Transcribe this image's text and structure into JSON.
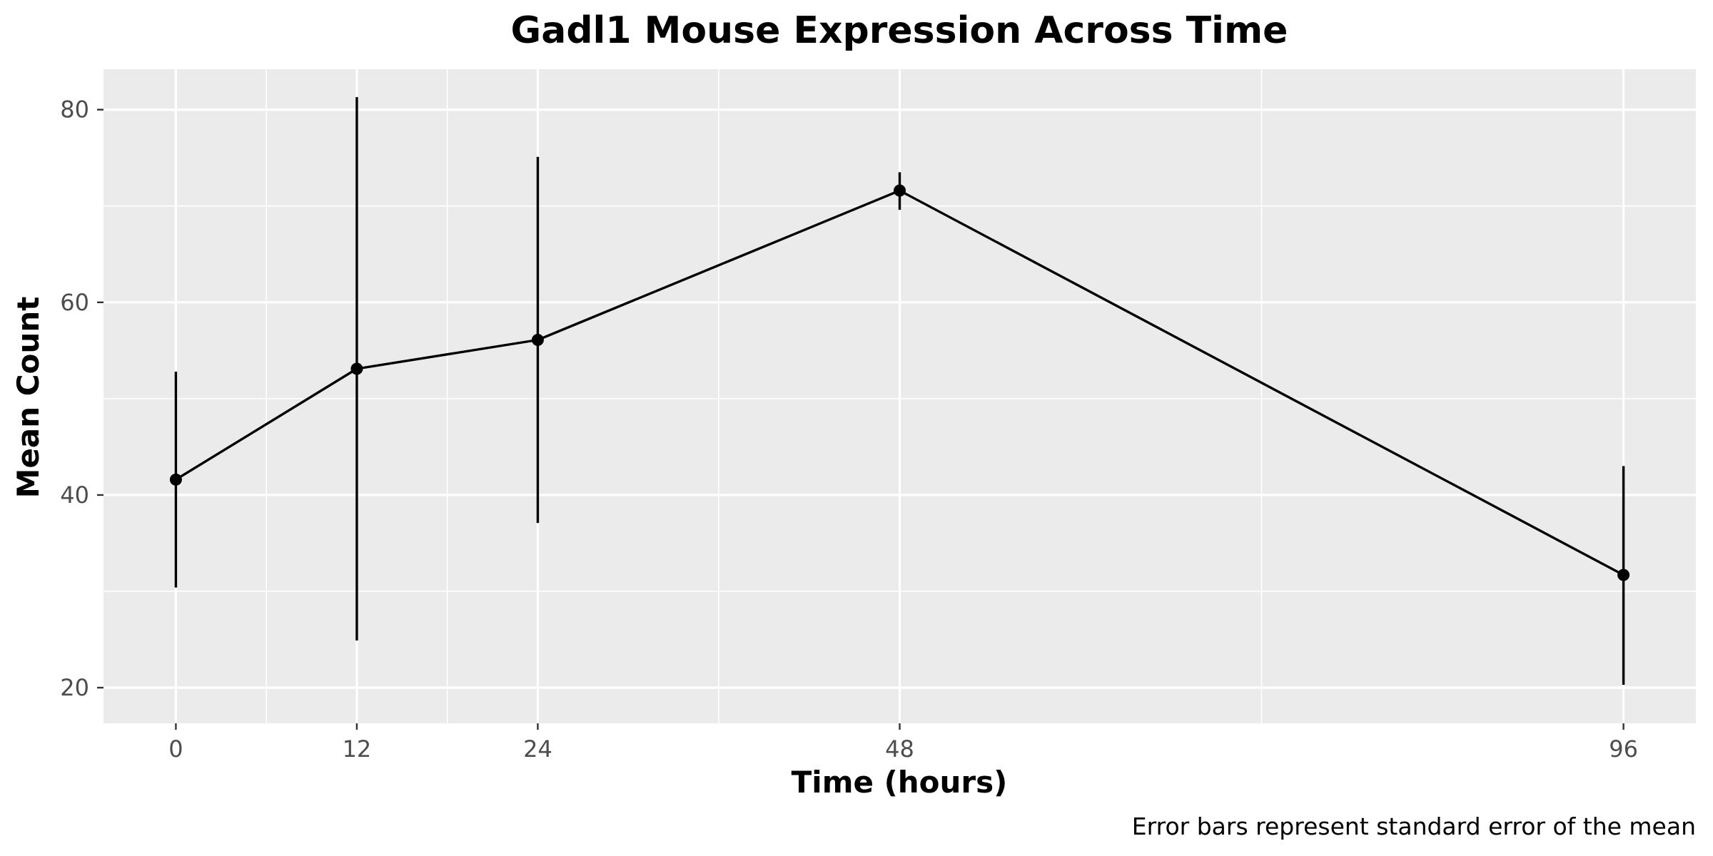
{
  "chart_data": {
    "type": "line",
    "title": "Gadl1 Mouse Expression Across Time",
    "xlabel": "Time (hours)",
    "ylabel": "Mean Count",
    "caption": "Error bars represent standard error of the mean",
    "x": [
      0,
      12,
      24,
      48,
      96
    ],
    "x_ticks": [
      0,
      12,
      24,
      48,
      96
    ],
    "y_ticks": [
      20,
      40,
      60,
      80
    ],
    "xlim": [
      -4.8,
      100.8
    ],
    "ylim": [
      16.3,
      84.2
    ],
    "grid": true,
    "series": [
      {
        "values": [
          41.6,
          53.1,
          56.1,
          71.6,
          31.7
        ],
        "error_low": [
          30.4,
          24.9,
          37.1,
          69.6,
          20.3
        ],
        "error_high": [
          52.8,
          81.3,
          75.1,
          73.5,
          43.0
        ]
      }
    ],
    "colors": {
      "panel": "#ebebeb",
      "grid": "#ffffff",
      "line": "#000000",
      "tick_text": "#4d4d4d",
      "tick_mark": "#333333"
    }
  }
}
